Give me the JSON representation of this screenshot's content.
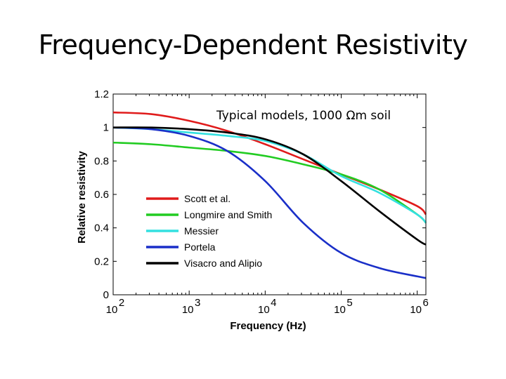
{
  "slide": {
    "title": "Frequency-Dependent Resistivity"
  },
  "chart_data": {
    "type": "line",
    "title": "",
    "annotation": "Typical models, 1000 Ωm soil",
    "xlabel": "Frequency (Hz)",
    "ylabel": "Relative resistivity",
    "xscale": "log",
    "xlim": [
      100,
      1300000
    ],
    "ylim": [
      0,
      1.2
    ],
    "x_ticks": [
      {
        "value": 100,
        "base": "10",
        "exp": "2"
      },
      {
        "value": 1000,
        "base": "10",
        "exp": "3"
      },
      {
        "value": 10000,
        "base": "10",
        "exp": "4"
      },
      {
        "value": 100000,
        "base": "10",
        "exp": "5"
      },
      {
        "value": 1000000,
        "base": "10",
        "exp": "6"
      }
    ],
    "y_ticks": [
      {
        "value": 0,
        "label": "0"
      },
      {
        "value": 0.2,
        "label": "0.2"
      },
      {
        "value": 0.4,
        "label": "0.4"
      },
      {
        "value": 0.6,
        "label": "0.6"
      },
      {
        "value": 0.8,
        "label": "0.8"
      },
      {
        "value": 1.0,
        "label": "1"
      },
      {
        "value": 1.2,
        "label": "1.2"
      }
    ],
    "legend_position": "lower-left",
    "x": [
      100,
      316,
      1000,
      3162,
      10000,
      31623,
      100000,
      316228,
      1000000,
      1300000
    ],
    "series": [
      {
        "name": "Scott et al.",
        "color": "#e01b1b",
        "values": [
          1.09,
          1.08,
          1.04,
          0.98,
          0.9,
          0.81,
          0.72,
          0.63,
          0.53,
          0.48
        ]
      },
      {
        "name": "Longmire and Smith",
        "color": "#22cc22",
        "values": [
          0.91,
          0.9,
          0.88,
          0.86,
          0.83,
          0.78,
          0.72,
          0.63,
          0.48,
          0.43
        ]
      },
      {
        "name": "Messier",
        "color": "#33e0e0",
        "values": [
          1.0,
          0.99,
          0.97,
          0.95,
          0.92,
          0.84,
          0.71,
          0.61,
          0.48,
          0.43
        ]
      },
      {
        "name": "Portela",
        "color": "#1a2fc8",
        "values": [
          1.0,
          0.99,
          0.95,
          0.86,
          0.68,
          0.43,
          0.25,
          0.16,
          0.11,
          0.1
        ]
      },
      {
        "name": "Visacro and Alipio",
        "color": "#000000",
        "values": [
          1.0,
          1.0,
          0.99,
          0.97,
          0.93,
          0.84,
          0.68,
          0.5,
          0.33,
          0.3
        ]
      }
    ]
  }
}
